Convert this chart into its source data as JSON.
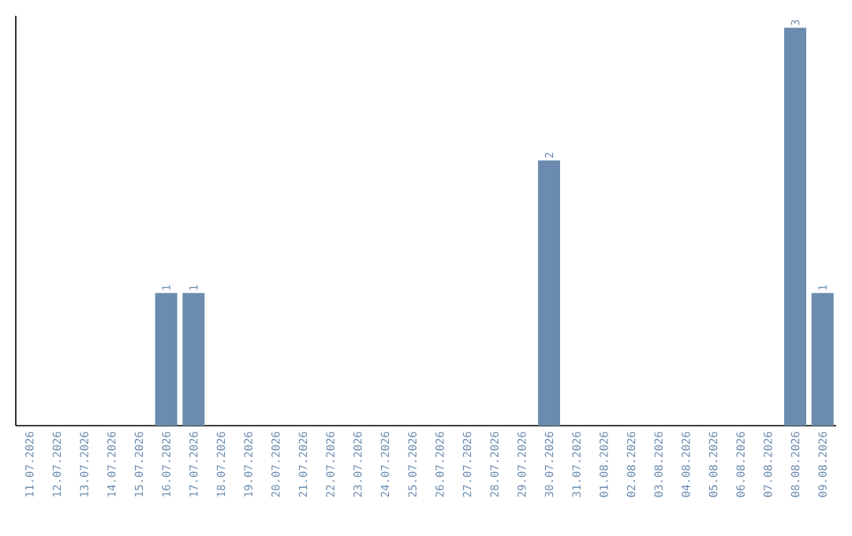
{
  "chart_data": {
    "type": "bar",
    "categories": [
      "11.07.2026",
      "12.07.2026",
      "13.07.2026",
      "14.07.2026",
      "15.07.2026",
      "16.07.2026",
      "17.07.2026",
      "18.07.2026",
      "19.07.2026",
      "20.07.2026",
      "21.07.2026",
      "22.07.2026",
      "23.07.2026",
      "24.07.2026",
      "25.07.2026",
      "26.07.2026",
      "27.07.2026",
      "28.07.2026",
      "29.07.2026",
      "30.07.2026",
      "31.07.2026",
      "01.08.2026",
      "02.08.2026",
      "03.08.2026",
      "04.08.2026",
      "05.08.2026",
      "06.08.2026",
      "07.08.2026",
      "08.08.2026",
      "09.08.2026"
    ],
    "values": [
      0,
      0,
      0,
      0,
      0,
      1,
      1,
      0,
      0,
      0,
      0,
      0,
      0,
      0,
      0,
      0,
      0,
      0,
      0,
      2,
      0,
      0,
      0,
      0,
      0,
      0,
      0,
      0,
      3,
      1
    ],
    "value_labels": [
      null,
      null,
      null,
      null,
      null,
      "1",
      "1",
      null,
      null,
      null,
      null,
      null,
      null,
      null,
      null,
      null,
      null,
      null,
      null,
      "2",
      null,
      null,
      null,
      null,
      null,
      null,
      null,
      null,
      "3",
      "1"
    ],
    "color": "#6b8caf",
    "tick_labels": "x"
  }
}
